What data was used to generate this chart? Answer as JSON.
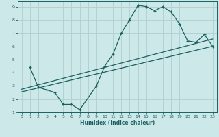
{
  "xlabel": "Humidex (Indice chaleur)",
  "bg_color": "#cde8e8",
  "grid_color": "#afd0d0",
  "line_color": "#1a6060",
  "xlim": [
    -0.5,
    23.5
  ],
  "ylim": [
    1,
    9.4
  ],
  "xticks": [
    0,
    1,
    2,
    3,
    4,
    5,
    6,
    7,
    8,
    9,
    10,
    11,
    12,
    13,
    14,
    15,
    16,
    17,
    18,
    19,
    20,
    21,
    22,
    23
  ],
  "yticks": [
    1,
    2,
    3,
    4,
    5,
    6,
    7,
    8,
    9
  ],
  "scatter_x": [
    1,
    2,
    3,
    4,
    5,
    6,
    7,
    9,
    10,
    11,
    12,
    13,
    14,
    15,
    16,
    17,
    18,
    19,
    20,
    21,
    22,
    23
  ],
  "scatter_y": [
    4.4,
    2.9,
    2.7,
    2.5,
    1.6,
    1.6,
    1.2,
    3.0,
    4.5,
    5.4,
    7.0,
    8.0,
    9.1,
    9.0,
    8.7,
    9.0,
    8.6,
    7.7,
    6.4,
    6.3,
    6.9,
    6.0
  ],
  "line1_x": [
    0,
    23
  ],
  "line1_y": [
    2.55,
    6.0
  ],
  "line2_x": [
    0,
    23
  ],
  "line2_y": [
    2.75,
    6.55
  ]
}
